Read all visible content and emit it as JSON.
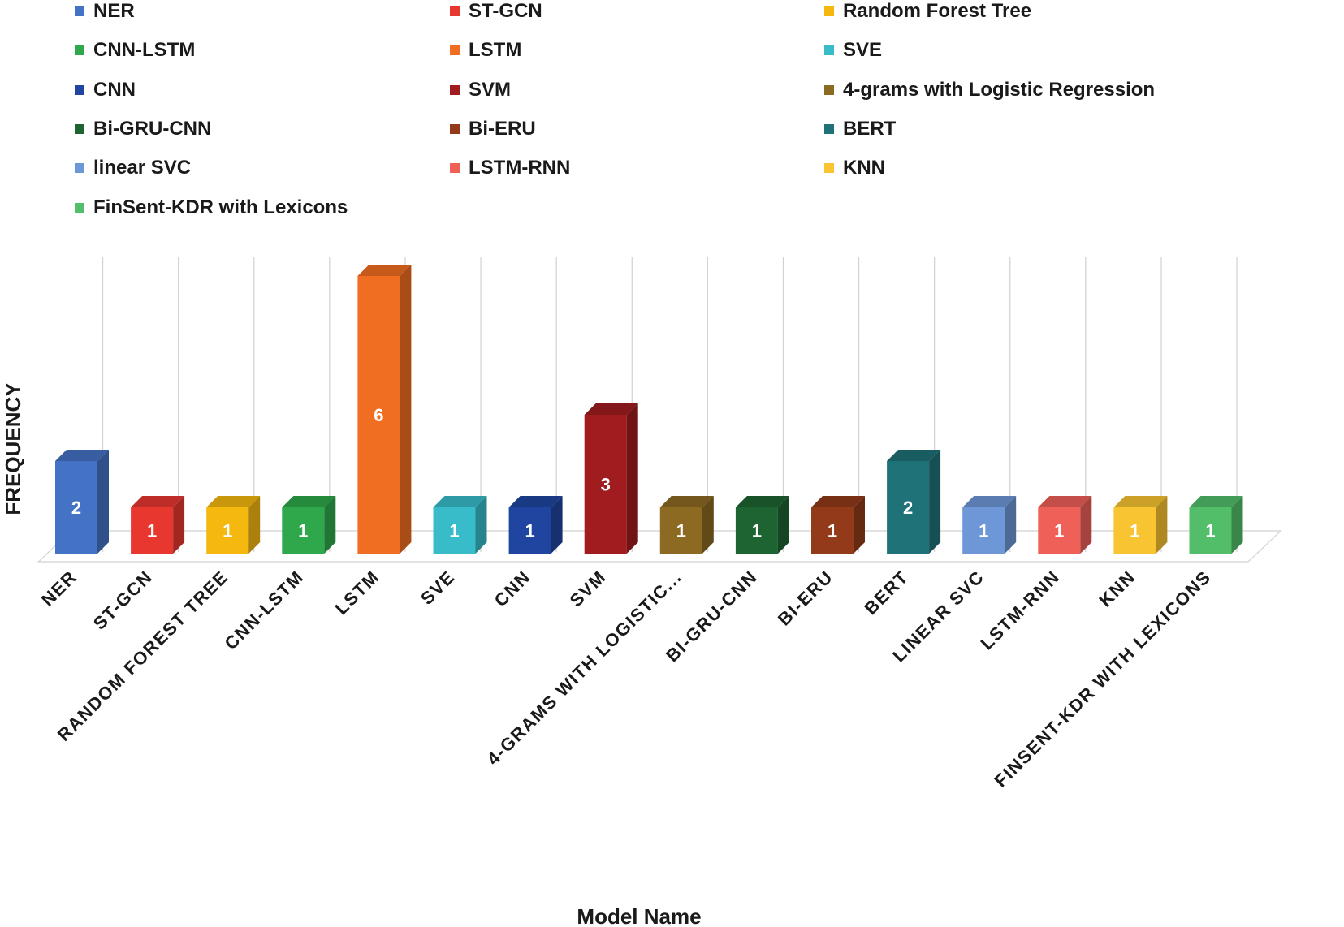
{
  "chart_data": {
    "type": "bar",
    "style": "3d-column",
    "xlabel": "Model Name",
    "ylabel": "FREQUENCY",
    "ylim": [
      0,
      6
    ],
    "grid": "vertical",
    "legend_position": "top",
    "categories": [
      "NER",
      "ST-GCN",
      "RANDOM FOREST TREE",
      "CNN-LSTM",
      "LSTM",
      "SVE",
      "CNN",
      "SVM",
      "4-GRAMS WITH LOGISTIC...",
      "BI-GRU-CNN",
      "BI-ERU",
      "BERT",
      "LINEAR SVC",
      "LSTM-RNN",
      "KNN",
      "FINSENT-KDR WITH LEXICONS"
    ],
    "series": [
      {
        "name": "NER",
        "value": 2,
        "color": "#4472C4"
      },
      {
        "name": "ST-GCN",
        "value": 1,
        "color": "#E8372F"
      },
      {
        "name": "Random Forest Tree",
        "value": 1,
        "color": "#F5B80F"
      },
      {
        "name": "CNN-LSTM",
        "value": 1,
        "color": "#2EA84A"
      },
      {
        "name": "LSTM",
        "value": 6,
        "color": "#F06E21"
      },
      {
        "name": "SVE",
        "value": 1,
        "color": "#38BCC9"
      },
      {
        "name": "CNN",
        "value": 1,
        "color": "#1F45A0"
      },
      {
        "name": "SVM",
        "value": 3,
        "color": "#A01C1F"
      },
      {
        "name": "4-grams with Logistic Regression",
        "value": 1,
        "color": "#8C6A22"
      },
      {
        "name": "Bi-GRU-CNN",
        "value": 1,
        "color": "#1E6332"
      },
      {
        "name": "Bi-ERU",
        "value": 1,
        "color": "#923A1A"
      },
      {
        "name": "BERT",
        "value": 2,
        "color": "#1F7278"
      },
      {
        "name": "linear SVC",
        "value": 1,
        "color": "#6E97D8"
      },
      {
        "name": "LSTM-RNN",
        "value": 1,
        "color": "#EE6058"
      },
      {
        "name": "KNN",
        "value": 1,
        "color": "#F9C431"
      },
      {
        "name": "FinSent-KDR with Lexicons",
        "value": 1,
        "color": "#52BE6A"
      }
    ]
  }
}
